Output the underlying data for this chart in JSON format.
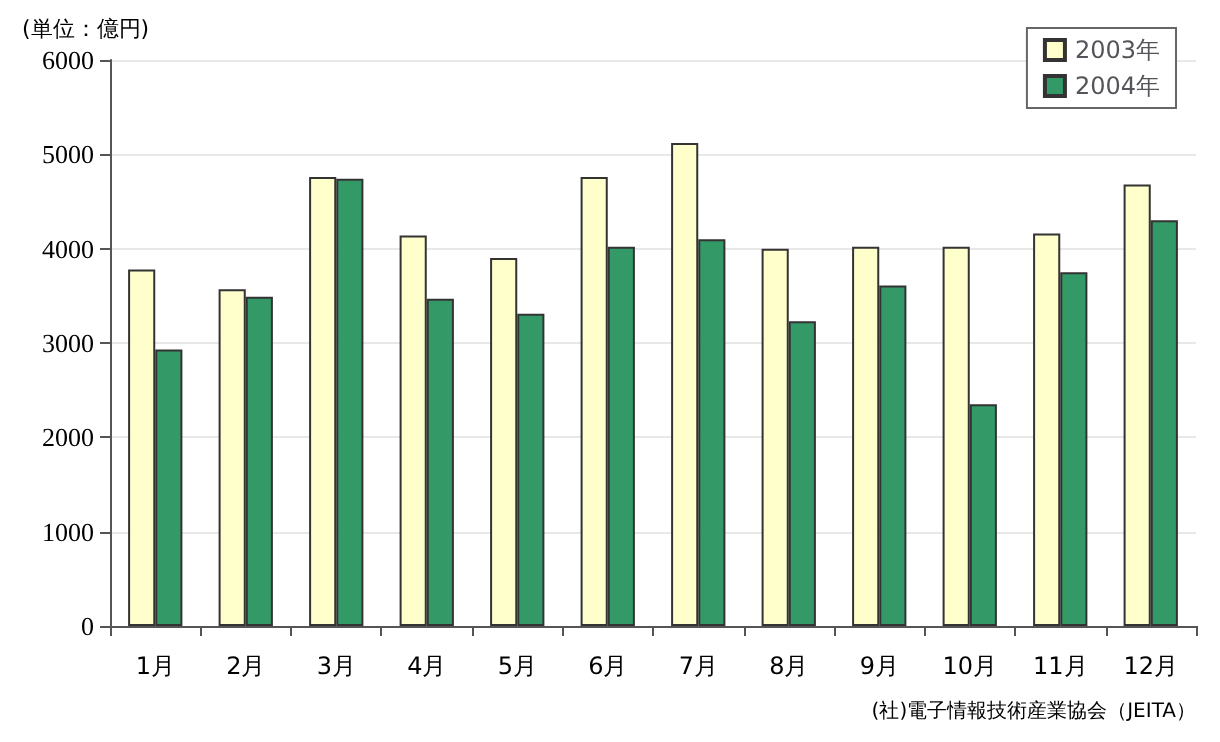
{
  "chart_data": {
    "type": "bar",
    "ylabel": "(単位：億円)",
    "categories": [
      "1月",
      "2月",
      "3月",
      "4月",
      "5月",
      "6月",
      "7月",
      "8月",
      "9月",
      "10月",
      "11月",
      "12月"
    ],
    "series": [
      {
        "name": "2003年",
        "color": "#ffffcc",
        "values": [
          3780,
          3570,
          4760,
          4140,
          3900,
          4760,
          5120,
          4000,
          4020,
          4020,
          4160,
          4680
        ]
      },
      {
        "name": "2004年",
        "color": "#339966",
        "values": [
          2930,
          3490,
          4740,
          3470,
          3310,
          4020,
          4100,
          3230,
          3610,
          2350,
          3750,
          4300
        ]
      }
    ],
    "ylim": [
      0,
      6000
    ],
    "yticks": [
      0,
      1000,
      2000,
      3000,
      4000,
      5000,
      6000
    ],
    "grid": "y",
    "legend": "top right",
    "annotations": [
      "(社)電子情報技術産業協会（JEITA）"
    ]
  }
}
